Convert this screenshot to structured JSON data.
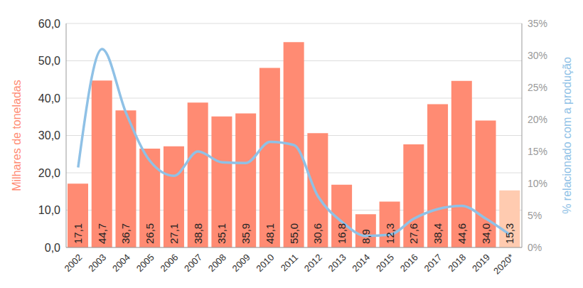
{
  "chart_data": {
    "type": "bar",
    "categories": [
      "2002",
      "2003",
      "2004",
      "2005",
      "2006",
      "2007",
      "2008",
      "2009",
      "2010",
      "2011",
      "2012",
      "2013",
      "2014",
      "2015",
      "2016",
      "2017",
      "2018",
      "2019",
      "2020*"
    ],
    "y_label": "Milhares de toneladas",
    "y2_label": "% relacionado com a produção",
    "ylim": [
      0,
      60
    ],
    "yticks": [
      {
        "value": 0,
        "label": "0,0"
      },
      {
        "value": 10,
        "label": "10,0"
      },
      {
        "value": 20,
        "label": "20,0"
      },
      {
        "value": 30,
        "label": "30,0"
      },
      {
        "value": 40,
        "label": "40,0"
      },
      {
        "value": 50,
        "label": "50,0"
      },
      {
        "value": 60,
        "label": "60,0"
      }
    ],
    "y2lim": [
      0,
      35
    ],
    "y2ticks": [
      {
        "value": 0,
        "label": "0%"
      },
      {
        "value": 5,
        "label": "5%"
      },
      {
        "value": 10,
        "label": "10%"
      },
      {
        "value": 15,
        "label": "15%"
      },
      {
        "value": 20,
        "label": "20%"
      },
      {
        "value": 25,
        "label": "25%"
      },
      {
        "value": 30,
        "label": "30%"
      },
      {
        "value": 35,
        "label": "35%"
      }
    ],
    "grid": true,
    "series": [
      {
        "type": "bar",
        "color": "#ff8b73",
        "colors": [
          "#ff8b73",
          "#ff8b73",
          "#ff8b73",
          "#ff8b73",
          "#ff8b73",
          "#ff8b73",
          "#ff8b73",
          "#ff8b73",
          "#ff8b73",
          "#ff8b73",
          "#ff8b73",
          "#ff8b73",
          "#ff8b73",
          "#ff8b73",
          "#ff8b73",
          "#ff8b73",
          "#ff8b73",
          "#ff8b73",
          "#ffcbb0"
        ],
        "values": [
          17.1,
          44.7,
          36.7,
          26.5,
          27.1,
          38.8,
          35.1,
          35.9,
          48.1,
          55.0,
          30.6,
          16.8,
          8.9,
          12.3,
          27.6,
          38.4,
          44.6,
          34.0,
          15.3
        ],
        "value_labels": [
          "17,1",
          "44,7",
          "36,7",
          "26,5",
          "27,1",
          "38,8",
          "35,1",
          "35,9",
          "48,1",
          "55,0",
          "30,6",
          "16,8",
          "8,9",
          "12,3",
          "27,6",
          "38,4",
          "44,6",
          "34,0",
          "15,3"
        ],
        "data_labels": true
      },
      {
        "type": "line",
        "axis": "y2",
        "color": "#8fc1e6",
        "line_style": "solid",
        "values": [
          12.5,
          31.0,
          21.0,
          13.5,
          11.2,
          15.0,
          13.3,
          13.2,
          16.5,
          16.0,
          8.0,
          4.0,
          1.8,
          2.0,
          4.5,
          6.0,
          6.5,
          4.5,
          2.0
        ]
      }
    ]
  }
}
